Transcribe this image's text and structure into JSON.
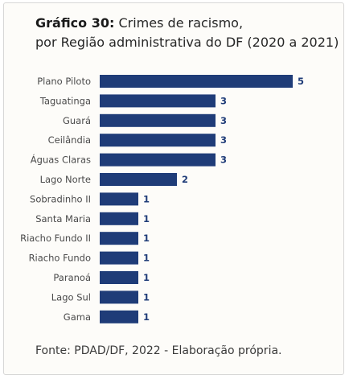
{
  "header": {
    "title_prefix": "Gráfico 30:",
    "title_line1": "Crimes de racismo,",
    "title_line2": "por Região administrativa do DF (2020 a 2021)"
  },
  "footer": {
    "source": "Fonte: PDAD/DF, 2022 - Elaboração própria."
  },
  "colors": {
    "bar": "#1f3c78"
  },
  "chart_data": {
    "type": "bar",
    "orientation": "horizontal",
    "title": "Crimes de racismo, por Região administrativa do DF (2020 a 2021)",
    "categories": [
      "Plano Piloto",
      "Taguatinga",
      "Guará",
      "Ceilândia",
      "Águas Claras",
      "Lago Norte",
      "Sobradinho II",
      "Santa Maria",
      "Riacho Fundo II",
      "Riacho Fundo",
      "Paranoá",
      "Lago Sul",
      "Gama"
    ],
    "values": [
      5,
      3,
      3,
      3,
      3,
      2,
      1,
      1,
      1,
      1,
      1,
      1,
      1
    ],
    "xlim": [
      0,
      5
    ],
    "grid": false,
    "legend": "none"
  }
}
